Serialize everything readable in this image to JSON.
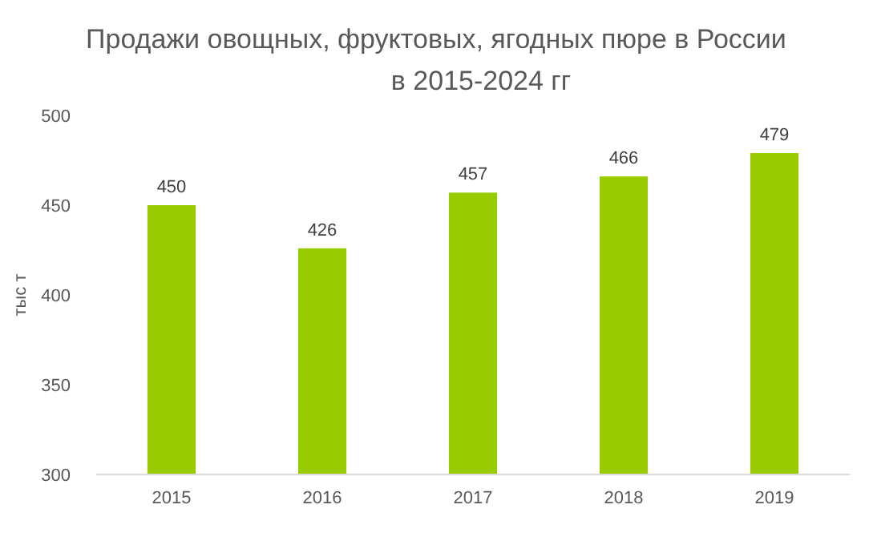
{
  "chart_data": {
    "type": "bar",
    "title": "Продажи овощных, фруктовых, ягодных пюре в России\nв 2015-2024 гг",
    "ylabel": "тыс т",
    "categories": [
      "2015",
      "2016",
      "2017",
      "2018",
      "2019"
    ],
    "values": [
      450,
      426,
      457,
      466,
      479
    ],
    "color": "#99cc00",
    "ylim": [
      300,
      500
    ],
    "yticks": [
      300,
      350,
      400,
      450,
      500
    ],
    "grid": false,
    "data_labels": true
  }
}
